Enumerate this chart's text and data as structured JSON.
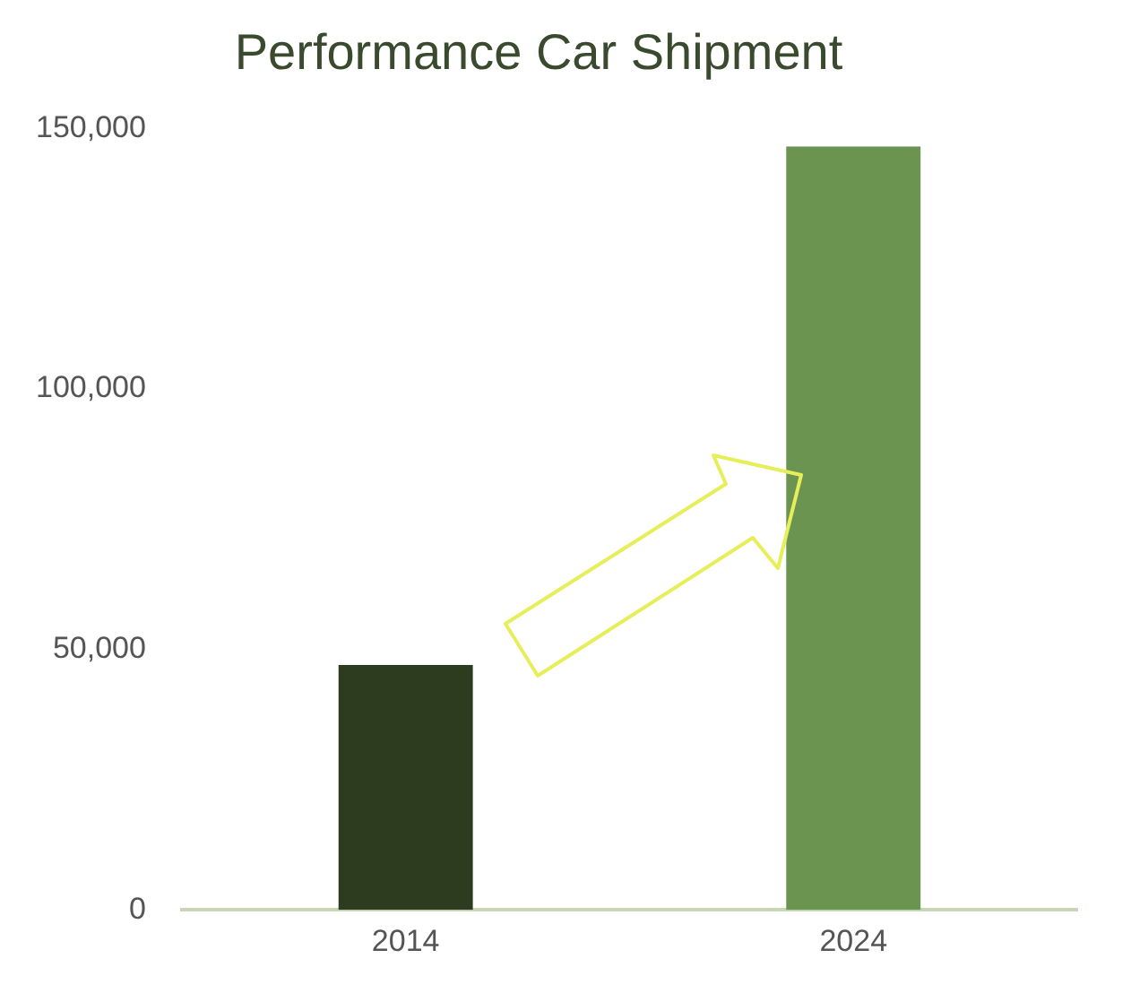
{
  "chart_data": {
    "type": "bar",
    "title": "Performance Car Shipment",
    "categories": [
      "2014",
      "2024"
    ],
    "colors": [
      "#2d3b1f",
      "#6a9450"
    ],
    "values": [
      47000,
      146500
    ],
    "ylim": [
      0,
      150000
    ],
    "yticks": [
      0,
      {
        "value": 50000,
        "label": "50,000"
      },
      {
        "value": 100000,
        "label": "100,000"
      },
      {
        "value": 150000,
        "label": "150,000"
      }
    ],
    "grid": false,
    "legend": false
  }
}
